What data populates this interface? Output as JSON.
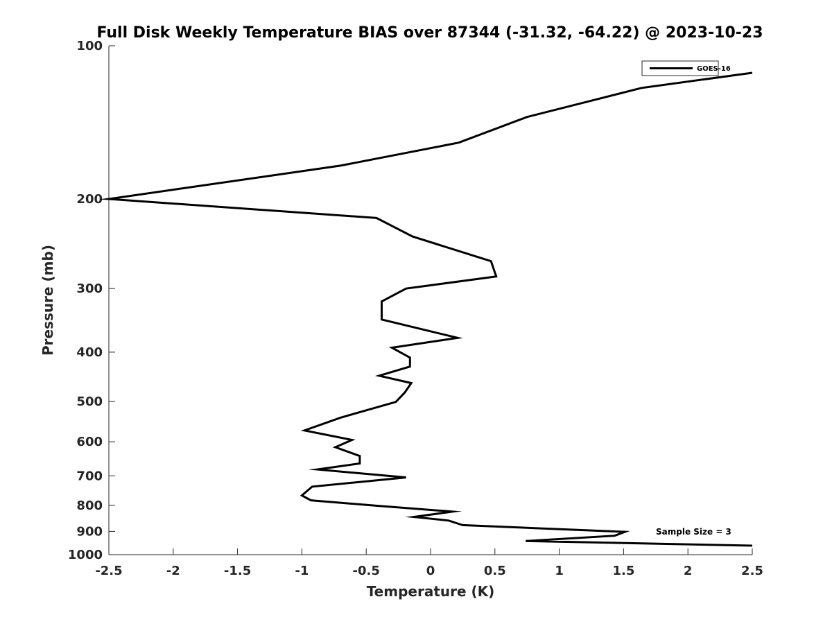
{
  "chart_data": {
    "type": "line",
    "title": "Full Disk Weekly Temperature BIAS over 87344 (-31.32, -64.22) @ 2023-10-23",
    "xlabel": "Temperature (K)",
    "ylabel": "Pressure (mb)",
    "xlim": [
      -2.5,
      2.5
    ],
    "ylim": [
      100,
      1000
    ],
    "yscale": "log",
    "y_reversed": true,
    "x_ticks": [
      -2.5,
      -2,
      -1.5,
      -1,
      -0.5,
      0,
      0.5,
      1,
      1.5,
      2,
      2.5
    ],
    "x_tick_labels": [
      "-2.5",
      "-2",
      "-1.5",
      "-1",
      "-0.5",
      "0",
      "0.5",
      "1",
      "1.5",
      "2",
      "2.5"
    ],
    "y_ticks": [
      100,
      200,
      300,
      400,
      500,
      600,
      700,
      800,
      900,
      1000
    ],
    "y_tick_labels": [
      "100",
      "200",
      "300",
      "400",
      "500",
      "600",
      "700",
      "800",
      "900",
      "1000"
    ],
    "legend_position": "top-right",
    "annotation": "Sample Size = 3",
    "series": [
      {
        "name": "GOES-16",
        "color": "#000000",
        "x": [
          2.5,
          1.64,
          0.75,
          0.22,
          -0.7,
          -2.5,
          -0.42,
          -0.14,
          0.47,
          0.51,
          -0.19,
          -0.38,
          -0.38,
          0.21,
          -0.3,
          -0.16,
          -0.16,
          -0.4,
          -0.15,
          -0.2,
          -0.27,
          -0.7,
          -0.98,
          -0.61,
          -0.74,
          -0.55,
          -0.55,
          -0.88,
          -0.19,
          -0.92,
          -1.0,
          -0.93,
          -0.43,
          0.17,
          -0.13,
          0.14,
          0.25,
          1.51,
          1.43,
          0.74,
          2.5
        ],
        "y": [
          113,
          121,
          138,
          155,
          172,
          200,
          218,
          237,
          265,
          284,
          300,
          318,
          345,
          375,
          392,
          410,
          427,
          445,
          460,
          480,
          501,
          538,
          570,
          595,
          615,
          640,
          662,
          680,
          705,
          735,
          765,
          782,
          801,
          823,
          843,
          857,
          875,
          902,
          918,
          940,
          960
        ]
      }
    ]
  }
}
